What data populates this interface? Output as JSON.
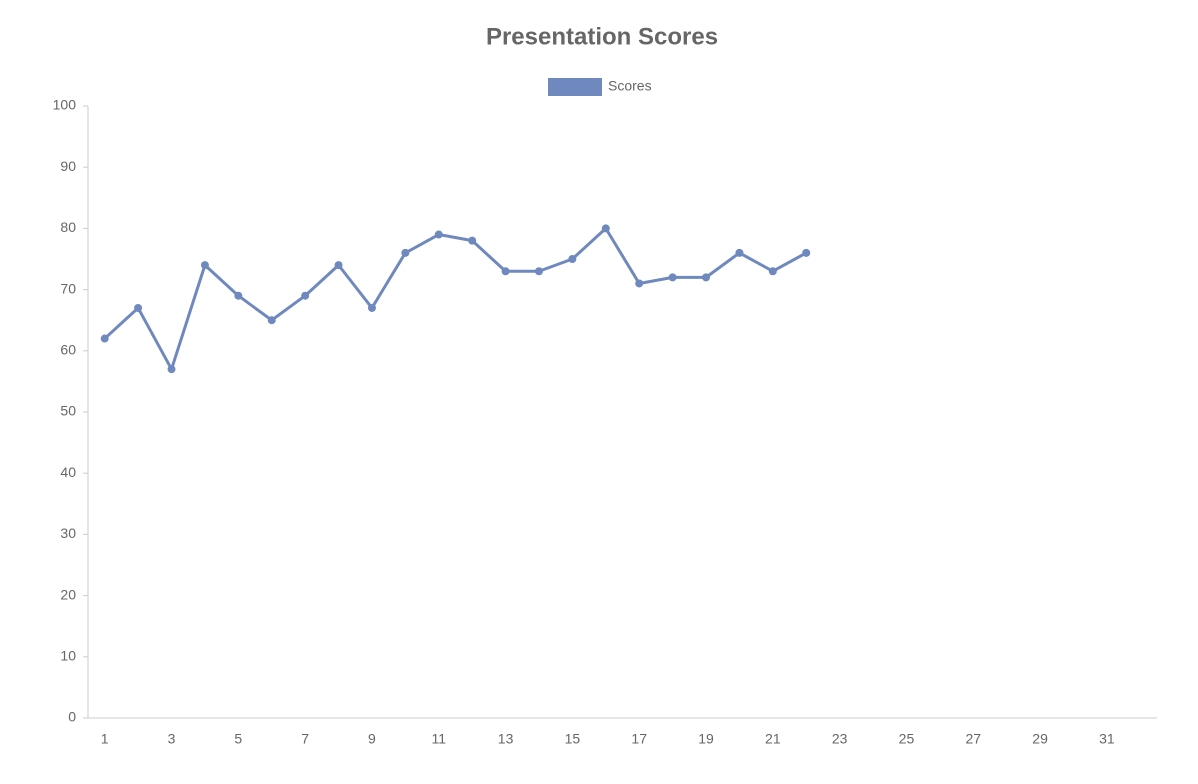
{
  "chart_data": {
    "type": "line",
    "title": "Presentation Scores",
    "categories": [
      1,
      null,
      3,
      null,
      5,
      null,
      7,
      null,
      9,
      null,
      11,
      null,
      13,
      null,
      15,
      null,
      17,
      null,
      19,
      null,
      21,
      null,
      23,
      null,
      25,
      null,
      27,
      null,
      29,
      null,
      31,
      null
    ],
    "series": [
      {
        "name": "Scores",
        "color": "#6f89bf",
        "values": [
          62,
          67,
          57,
          74,
          69,
          65,
          69,
          74,
          67,
          76,
          79,
          78,
          73,
          73,
          75,
          80,
          71,
          72,
          72,
          76,
          73,
          76,
          null,
          null,
          null,
          null,
          null,
          null,
          null,
          null,
          null,
          null
        ]
      }
    ],
    "ylim": [
      0,
      100
    ],
    "yticks": [
      0,
      10,
      20,
      30,
      40,
      50,
      60,
      70,
      80,
      90,
      100
    ],
    "grid": false,
    "legend": "top"
  }
}
